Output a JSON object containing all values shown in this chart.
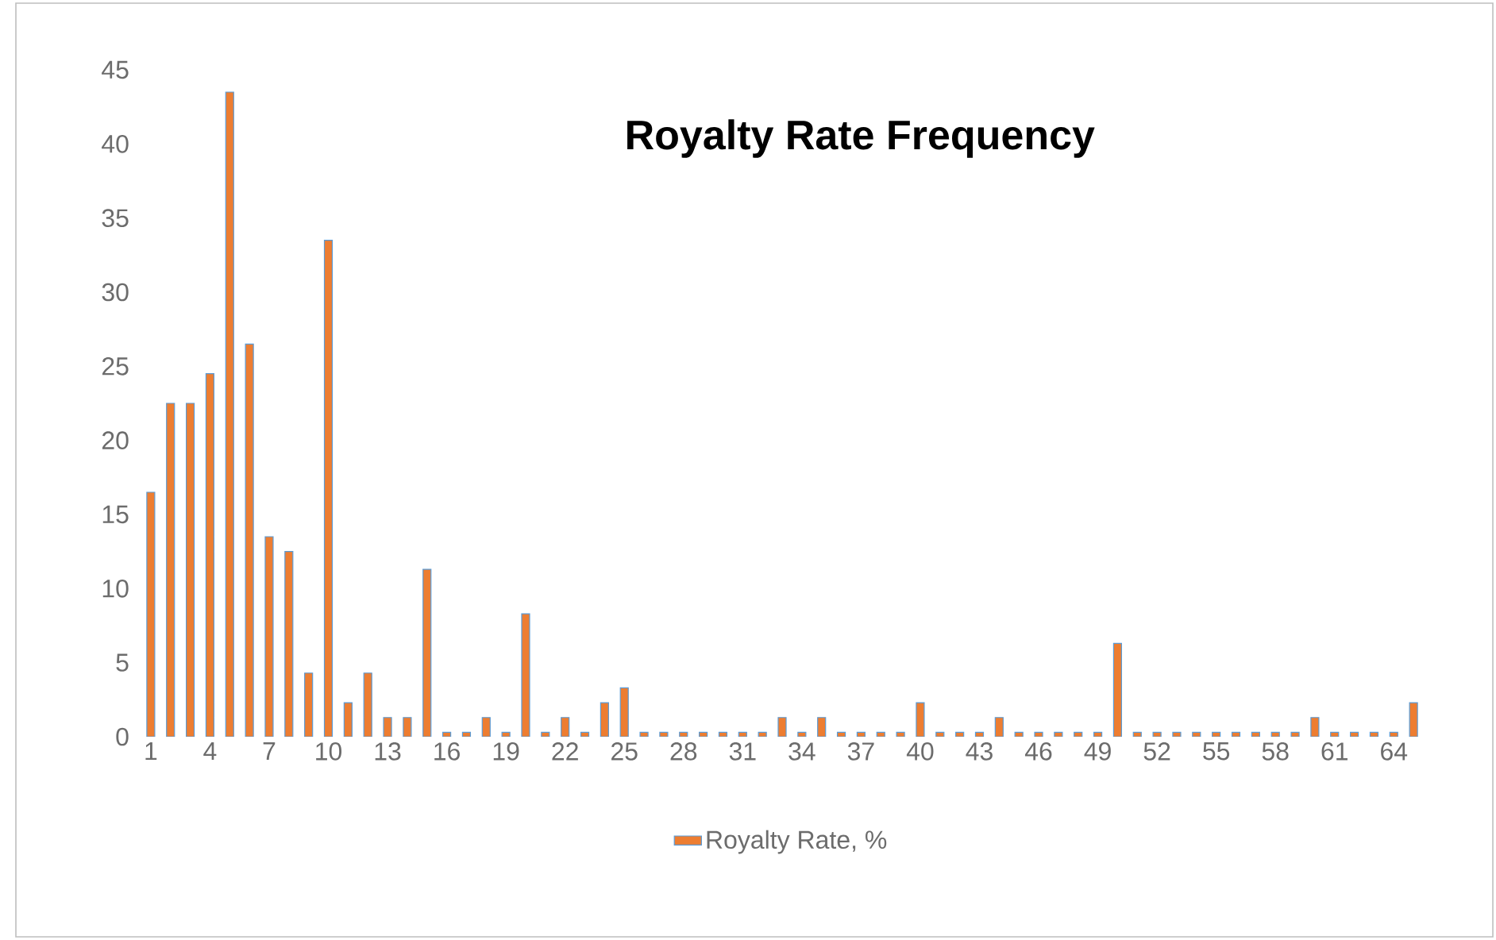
{
  "chart_data": {
    "type": "bar",
    "title": "Royalty Rate Frequency",
    "categories": [
      "1",
      null,
      null,
      "4",
      null,
      null,
      "7",
      null,
      null,
      "10",
      null,
      null,
      "13",
      null,
      null,
      "16",
      null,
      null,
      "19",
      null,
      null,
      "22",
      null,
      null,
      "25",
      null,
      null,
      "28",
      null,
      null,
      "31",
      null,
      null,
      "34",
      null,
      null,
      "37",
      null,
      null,
      "40",
      null,
      null,
      "43",
      null,
      null,
      "46",
      null,
      null,
      "49",
      null,
      null,
      "52",
      null,
      null,
      "55",
      null,
      null,
      "58",
      null,
      null,
      "61",
      null,
      null,
      "64",
      null
    ],
    "series": [
      {
        "name": "Royalty Rate, %",
        "color": "#ed7d31",
        "values": [
          16.5,
          22.5,
          22.5,
          24.5,
          43.5,
          26.5,
          13.5,
          12.5,
          4.3,
          33.5,
          2.3,
          4.3,
          1.3,
          1.3,
          11.3,
          0.3,
          0.3,
          1.3,
          0.3,
          8.3,
          0.3,
          1.3,
          0.3,
          2.3,
          3.3,
          0.3,
          0.3,
          0.3,
          0.3,
          0.3,
          0.3,
          0.3,
          1.3,
          0.3,
          1.3,
          0.3,
          0.3,
          0.3,
          0.3,
          2.3,
          0.3,
          0.3,
          0.3,
          1.3,
          0.3,
          0.3,
          0.3,
          0.3,
          0.3,
          6.3,
          0.3,
          0.3,
          0.3,
          0.3,
          0.3,
          0.3,
          0.3,
          0.3,
          0.3,
          1.3,
          0.3,
          0.3,
          0.3,
          0.3,
          2.3
        ]
      }
    ],
    "ylim": [
      0,
      45
    ],
    "yticks": [
      0,
      5,
      10,
      15,
      20,
      25,
      30,
      35,
      40,
      45
    ],
    "grid": false,
    "legend": "bottom"
  }
}
